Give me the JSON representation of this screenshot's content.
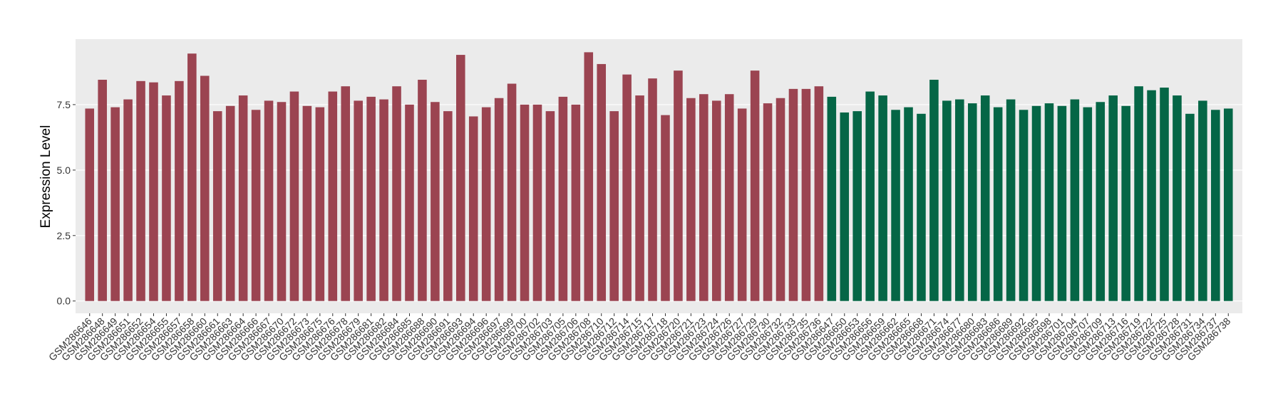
{
  "chart_data": {
    "type": "bar",
    "y_label": "Expression Level",
    "ylim": [
      -0.47,
      10.0
    ],
    "yticks": [
      {
        "value": 0,
        "label": "0.0"
      },
      2.5,
      {
        "value": 5,
        "label": "5.0"
      },
      7.5
    ],
    "grid": true,
    "series": [
      {
        "color": "#9b4451",
        "categories": [
          "GSM286646",
          "GSM286648",
          "GSM286649",
          "GSM286651",
          "GSM286652",
          "GSM286654",
          "GSM286655",
          "GSM286657",
          "GSM286658",
          "GSM286660",
          "GSM286661",
          "GSM286663",
          "GSM286664",
          "GSM286666",
          "GSM286667",
          "GSM286670",
          "GSM286672",
          "GSM286673",
          "GSM286675",
          "GSM286676",
          "GSM286678",
          "GSM286679",
          "GSM286681",
          "GSM286682",
          "GSM286684",
          "GSM286685",
          "GSM286688",
          "GSM286690",
          "GSM286691",
          "GSM286693",
          "GSM286694",
          "GSM286696",
          "GSM286697",
          "GSM286699",
          "GSM286700",
          "GSM286702",
          "GSM286703",
          "GSM286705",
          "GSM286706",
          "GSM286708",
          "GSM286710",
          "GSM286712",
          "GSM286714",
          "GSM286715",
          "GSM286717",
          "GSM286718",
          "GSM286720",
          "GSM286721",
          "GSM286723",
          "GSM286724",
          "GSM286726",
          "GSM286727",
          "GSM286729",
          "GSM286730",
          "GSM286732",
          "GSM286733",
          "GSM286735",
          "GSM286736"
        ],
        "values": [
          7.35,
          8.45,
          7.4,
          7.7,
          8.4,
          8.35,
          7.85,
          8.4,
          9.45,
          8.6,
          7.25,
          7.45,
          7.85,
          7.3,
          7.65,
          7.6,
          8.0,
          7.45,
          7.4,
          8.0,
          8.2,
          7.65,
          7.8,
          7.7,
          8.2,
          7.5,
          8.45,
          7.6,
          7.25,
          9.4,
          7.05,
          7.4,
          7.75,
          8.3,
          7.5,
          7.5,
          7.25,
          7.8,
          7.5,
          9.5,
          9.05,
          7.25,
          8.65,
          7.85,
          8.5,
          7.1,
          8.8,
          7.75,
          7.9,
          7.65,
          7.9,
          7.35,
          8.8,
          7.55,
          7.75,
          8.1,
          8.1,
          8.2
        ]
      },
      {
        "color": "#056646",
        "categories": [
          "GSM286647",
          "GSM286650",
          "GSM286653",
          "GSM286656",
          "GSM286659",
          "GSM286662",
          "GSM286665",
          "GSM286668",
          "GSM286671",
          "GSM286674",
          "GSM286677",
          "GSM286680",
          "GSM286683",
          "GSM286686",
          "GSM286689",
          "GSM286692",
          "GSM286695",
          "GSM286698",
          "GSM286701",
          "GSM286704",
          "GSM286707",
          "GSM286709",
          "GSM286713",
          "GSM286716",
          "GSM286719",
          "GSM286722",
          "GSM286725",
          "GSM286728",
          "GSM286731",
          "GSM286734",
          "GSM286737",
          "GSM286738"
        ],
        "values": [
          7.8,
          7.2,
          7.25,
          8.0,
          7.85,
          7.3,
          7.4,
          7.15,
          8.45,
          7.65,
          7.7,
          7.55,
          7.85,
          7.4,
          7.7,
          7.3,
          7.45,
          7.55,
          7.45,
          7.7,
          7.4,
          7.6,
          7.85,
          7.45,
          8.2,
          8.05,
          8.15,
          7.85,
          7.15,
          7.65,
          7.3,
          7.35
        ]
      }
    ]
  }
}
